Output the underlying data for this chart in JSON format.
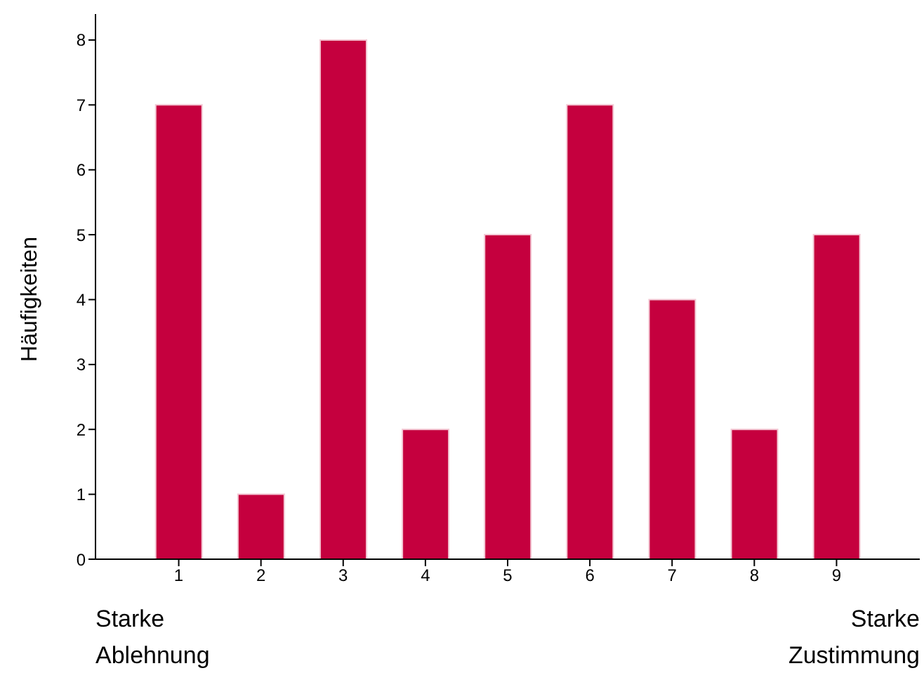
{
  "chart_data": {
    "type": "bar",
    "ylabel": "Häufigkeiten",
    "categories": [
      "1",
      "2",
      "3",
      "4",
      "5",
      "6",
      "7",
      "8",
      "9"
    ],
    "values": [
      7,
      1,
      8,
      2,
      5,
      7,
      4,
      2,
      5
    ],
    "color": "#c5003e",
    "ylim": [
      0,
      8.4
    ],
    "yticks": [
      0,
      1,
      2,
      3,
      4,
      5,
      6,
      7,
      8
    ],
    "grid": false,
    "annotations": [
      "Starke\nAblehnung",
      "Starke\nZustimmung"
    ]
  }
}
